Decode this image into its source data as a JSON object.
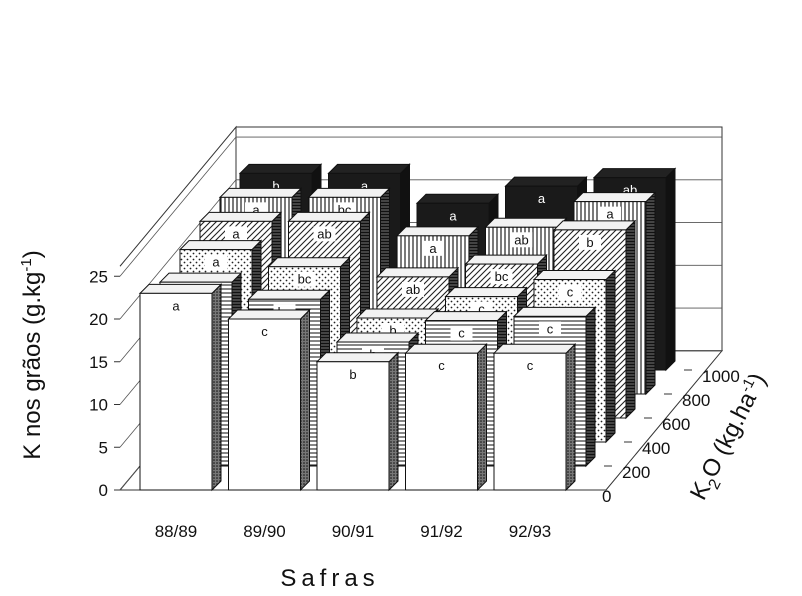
{
  "chart_data": {
    "type": "bar",
    "title": "",
    "ylabel": "K nos grãos (g.kg-1)",
    "ylabel_parts": {
      "main": "K nos grãos (g.kg",
      "sup": "-1",
      "close": ")"
    },
    "xlabel": "Safras",
    "zlabel": "K2O (kg.ha-1)",
    "zlabel_parts": {
      "k": "K",
      "sub": "2",
      "mid": "O (kg.ha",
      "sup": "-1",
      "close": ")"
    },
    "ylim": [
      0,
      25
    ],
    "yticks": [
      "0",
      "5",
      "10",
      "15",
      "20",
      "25"
    ],
    "categories": [
      "88/89",
      "89/90",
      "90/91",
      "91/92",
      "92/93"
    ],
    "depth_categories": [
      "0",
      "200",
      "400",
      "600",
      "800",
      "1000"
    ],
    "grid": true,
    "series": [
      {
        "name": "0",
        "pattern": "white",
        "values": [
          23.0,
          20.0,
          15.0,
          16.0,
          16.0
        ],
        "letters": [
          "a",
          "c",
          "b",
          "c",
          "c"
        ]
      },
      {
        "name": "200",
        "pattern": "hlines",
        "values": [
          21.5,
          19.5,
          14.5,
          17.0,
          17.5
        ],
        "letters": [
          "a",
          "bc",
          "b",
          "c",
          "c"
        ]
      },
      {
        "name": "400",
        "pattern": "dots",
        "values": [
          22.5,
          20.5,
          14.5,
          17.0,
          19.0
        ],
        "letters": [
          "a",
          "bc",
          "b",
          "c",
          "c"
        ]
      },
      {
        "name": "600",
        "pattern": "diag",
        "values": [
          23.0,
          23.0,
          16.5,
          18.0,
          22.0
        ],
        "letters": [
          "a",
          "ab",
          "ab",
          "bc",
          "b"
        ]
      },
      {
        "name": "800",
        "pattern": "vlines",
        "values": [
          23.0,
          23.0,
          18.5,
          19.5,
          22.5
        ],
        "letters": [
          "a",
          "bc",
          "a",
          "ab",
          "a"
        ]
      },
      {
        "name": "1000",
        "pattern": "black",
        "values": [
          23.0,
          23.0,
          19.5,
          21.5,
          22.5
        ],
        "letters": [
          "b",
          "a",
          "a",
          "a",
          "ab"
        ]
      }
    ]
  }
}
